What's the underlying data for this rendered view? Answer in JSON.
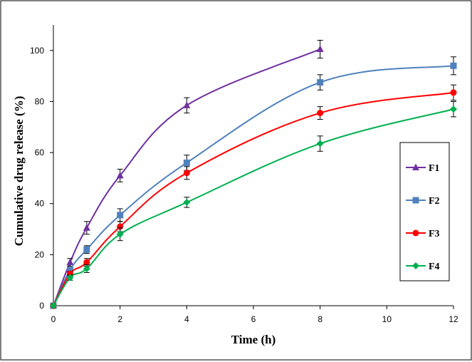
{
  "chart_data": {
    "type": "line",
    "title": "",
    "xlabel": "Time (h)",
    "ylabel": "Cumulative drug release (%)",
    "xlim": [
      0,
      12
    ],
    "ylim": [
      0,
      110
    ],
    "xticks": [
      0,
      2,
      4,
      6,
      8,
      10,
      12
    ],
    "yticks": [
      0,
      20,
      40,
      60,
      80,
      100
    ],
    "grid": false,
    "legend_position": "right",
    "x": [
      0,
      0.5,
      1,
      2,
      4,
      8,
      12
    ],
    "series": [
      {
        "name": "F1",
        "color": "#7030a0",
        "marker": "triangle",
        "values": [
          0,
          17,
          30.5,
          51,
          78.5,
          100.5,
          null
        ],
        "errors": [
          0,
          1.5,
          2.5,
          2.5,
          3,
          3.5,
          null
        ]
      },
      {
        "name": "F2",
        "color": "#4f81bd",
        "marker": "square",
        "values": [
          0,
          14,
          22,
          35.5,
          56,
          87.5,
          94
        ],
        "errors": [
          0,
          1,
          1.5,
          2.5,
          3,
          3,
          3.5
        ]
      },
      {
        "name": "F3",
        "color": "#ff0000",
        "marker": "circle",
        "values": [
          0,
          12.5,
          17,
          31,
          52,
          75.5,
          83.5
        ],
        "errors": [
          0,
          1,
          1.5,
          2,
          2.5,
          2.5,
          3
        ]
      },
      {
        "name": "F4",
        "color": "#00b050",
        "marker": "diamond",
        "values": [
          0,
          11,
          14.5,
          28,
          40.5,
          63.5,
          77
        ],
        "errors": [
          0,
          1,
          1.5,
          2.5,
          2,
          3,
          3
        ]
      }
    ]
  }
}
